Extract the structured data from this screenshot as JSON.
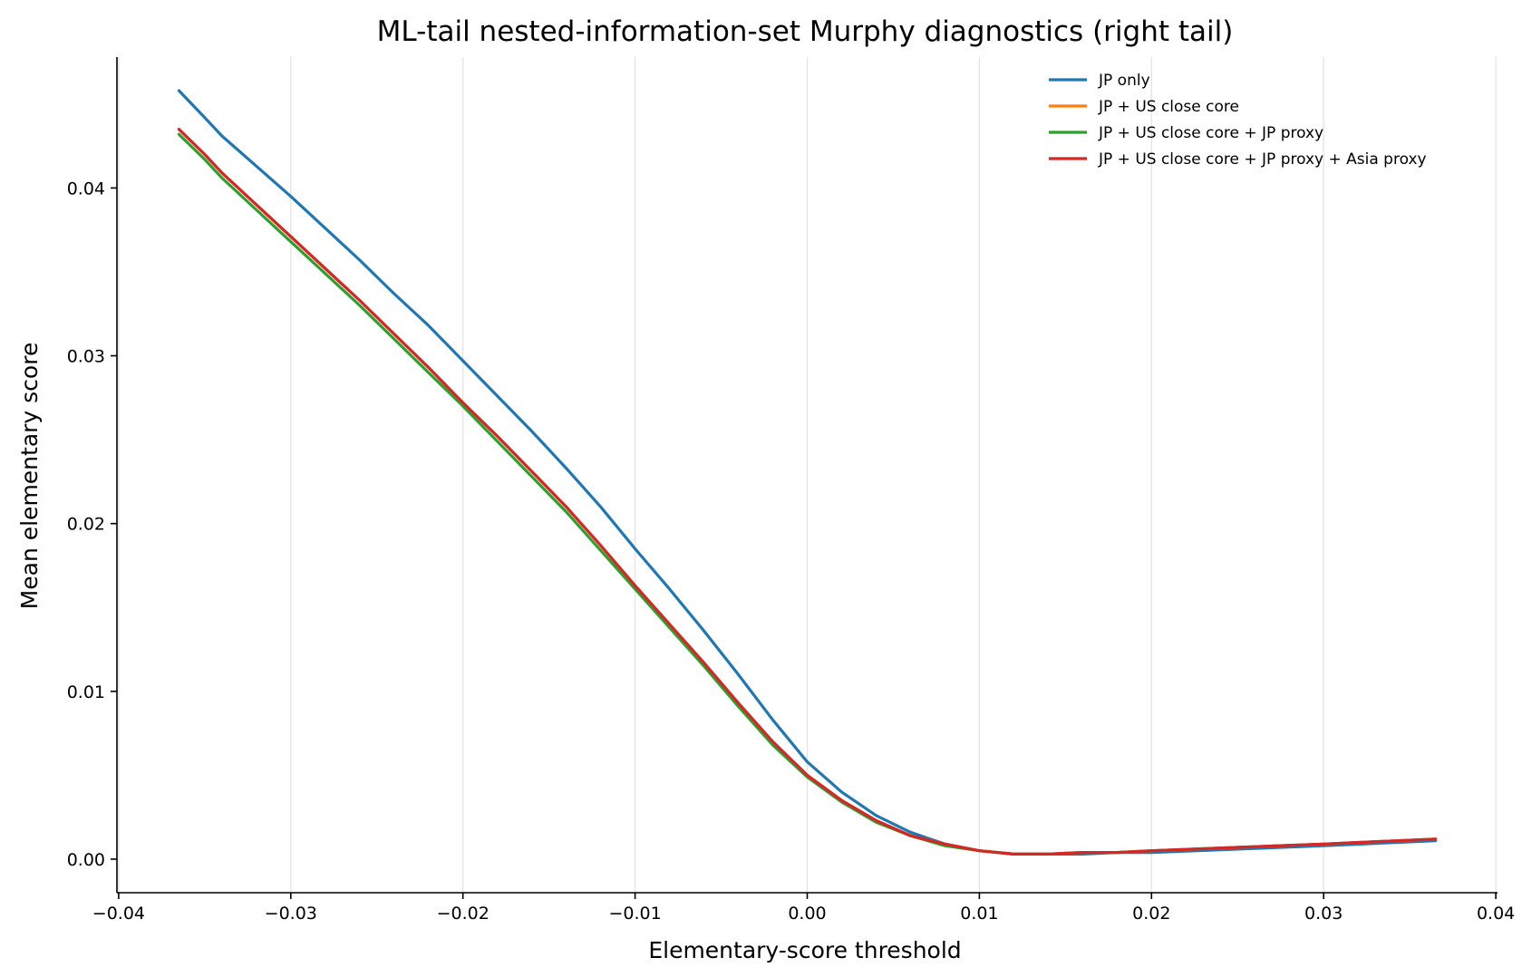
{
  "chart_data": {
    "type": "line",
    "title": "ML-tail nested-information-set Murphy diagnostics (right tail)",
    "xlabel": "Elementary-score threshold",
    "ylabel": "Mean elementary score",
    "xlim": [
      -0.0401,
      0.0401
    ],
    "ylim": [
      -0.002,
      0.0478
    ],
    "xticks": [
      -0.04,
      -0.03,
      -0.02,
      -0.01,
      0.0,
      0.01,
      0.02,
      0.03,
      0.04
    ],
    "xtick_labels": [
      "−0.04",
      "−0.03",
      "−0.02",
      "−0.01",
      "0.00",
      "0.01",
      "0.02",
      "0.03",
      "0.04"
    ],
    "yticks": [
      0.0,
      0.01,
      0.02,
      0.03,
      0.04
    ],
    "ytick_labels": [
      "0.00",
      "0.01",
      "0.02",
      "0.03",
      "0.04"
    ],
    "grid": "vertical",
    "legend": "top-right",
    "x": [
      -0.0365,
      -0.035,
      -0.034,
      -0.032,
      -0.03,
      -0.028,
      -0.026,
      -0.024,
      -0.022,
      -0.02,
      -0.018,
      -0.016,
      -0.014,
      -0.012,
      -0.01,
      -0.008,
      -0.006,
      -0.004,
      -0.002,
      0.0,
      0.002,
      0.004,
      0.006,
      0.008,
      0.01,
      0.012,
      0.014,
      0.016,
      0.018,
      0.02,
      0.025,
      0.03,
      0.0365
    ],
    "series": [
      {
        "name": "JP only",
        "color": "#1f77b4",
        "values": [
          0.0458,
          0.0442,
          0.0431,
          0.0413,
          0.0395,
          0.0376,
          0.0357,
          0.0337,
          0.0318,
          0.0297,
          0.0276,
          0.0255,
          0.0233,
          0.021,
          0.0185,
          0.0161,
          0.0136,
          0.011,
          0.0083,
          0.0058,
          0.004,
          0.0026,
          0.0016,
          0.0009,
          0.0005,
          0.0003,
          0.0003,
          0.0003,
          0.0004,
          0.0004,
          0.0006,
          0.0008,
          0.0011
        ]
      },
      {
        "name": "JP + US close core",
        "color": "#ff7f0e",
        "values": [
          0.0435,
          0.042,
          0.0409,
          0.039,
          0.0371,
          0.0352,
          0.0333,
          0.0313,
          0.0293,
          0.0272,
          0.0252,
          0.0231,
          0.021,
          0.0187,
          0.0163,
          0.014,
          0.0117,
          0.0093,
          0.007,
          0.005,
          0.0035,
          0.0023,
          0.0014,
          0.0009,
          0.0005,
          0.0003,
          0.0003,
          0.0004,
          0.0004,
          0.0005,
          0.0007,
          0.0009,
          0.0012
        ]
      },
      {
        "name": "JP + US close core + JP proxy",
        "color": "#2ca02c",
        "values": [
          0.0432,
          0.0417,
          0.0406,
          0.0387,
          0.0368,
          0.0349,
          0.033,
          0.031,
          0.029,
          0.027,
          0.0249,
          0.0228,
          0.0207,
          0.0184,
          0.0161,
          0.0138,
          0.0115,
          0.0091,
          0.0068,
          0.0049,
          0.0034,
          0.0022,
          0.0014,
          0.0008,
          0.0005,
          0.0003,
          0.0003,
          0.0004,
          0.0004,
          0.0005,
          0.0007,
          0.0009,
          0.0012
        ]
      },
      {
        "name": "JP + US close core + JP proxy + Asia proxy",
        "color": "#d62728",
        "values": [
          0.0435,
          0.042,
          0.0409,
          0.039,
          0.0371,
          0.0352,
          0.0333,
          0.0313,
          0.0293,
          0.0272,
          0.0252,
          0.0231,
          0.021,
          0.0187,
          0.0163,
          0.014,
          0.0117,
          0.0093,
          0.007,
          0.005,
          0.0035,
          0.0023,
          0.0014,
          0.0009,
          0.0005,
          0.0003,
          0.0003,
          0.0004,
          0.0004,
          0.0005,
          0.0007,
          0.0009,
          0.0012
        ]
      }
    ]
  }
}
